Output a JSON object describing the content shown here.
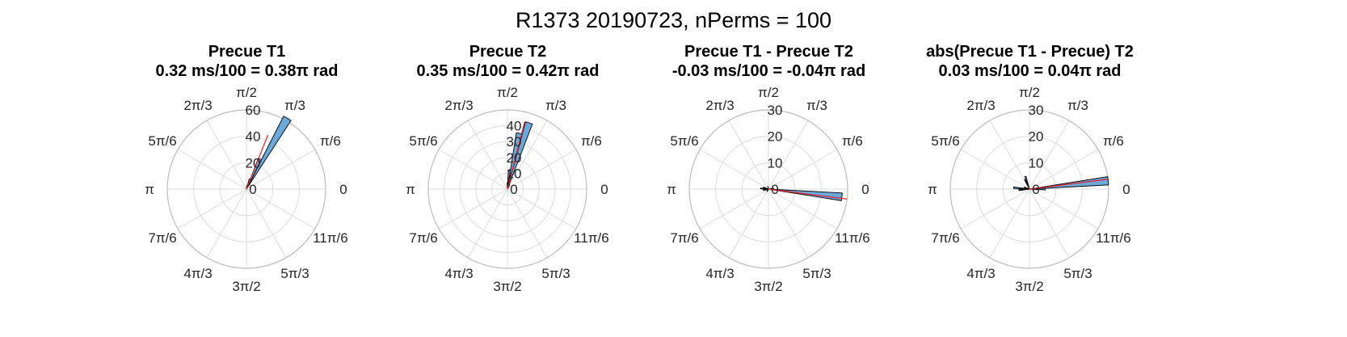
{
  "suptitle": "R1373 20190723, nPerms = 100",
  "theta_tick_labels": [
    "0",
    "π/6",
    "π/3",
    "π/2",
    "2π/3",
    "5π/6",
    "π",
    "7π/6",
    "4π/3",
    "3π/2",
    "5π/3",
    "11π/6"
  ],
  "colors": {
    "bar_fill": "#6aa9d9",
    "bar_edge": "#000000",
    "mean_line": "#e8202a",
    "grid": "#dcdcdc",
    "outer_ring": "#bdbdbd"
  },
  "chart_data": [
    {
      "type": "polar-histogram",
      "title": "Precue T1",
      "subtitle": "0.32 ms/100 = 0.38π rad",
      "rlim": [
        0,
        60
      ],
      "r_ticks": [
        "0",
        "20",
        "40",
        "60"
      ],
      "r_tick_values": [
        0,
        20,
        40,
        60
      ],
      "grid": true,
      "bins": [
        {
          "angle_deg": 60,
          "count": 62
        },
        {
          "angle_deg": 66,
          "count": 25
        },
        {
          "angle_deg": 72,
          "count": 8
        },
        {
          "angle_deg": 78,
          "count": 3
        },
        {
          "angle_deg": 84,
          "count": 2
        }
      ],
      "mean_angle_pi": 0.38,
      "mean_length": 44
    },
    {
      "type": "polar-histogram",
      "title": "Precue T2",
      "subtitle": "0.35 ms/100 = 0.42π rad",
      "rlim": [
        0,
        50
      ],
      "r_ticks": [
        "0",
        "10",
        "20",
        "30",
        "40"
      ],
      "r_tick_values": [
        0,
        10,
        20,
        30,
        40
      ],
      "grid": true,
      "bins": [
        {
          "angle_deg": 72,
          "count": 44
        },
        {
          "angle_deg": 78,
          "count": 36
        },
        {
          "angle_deg": 84,
          "count": 12
        },
        {
          "angle_deg": 90,
          "count": 4
        },
        {
          "angle_deg": 66,
          "count": 3
        }
      ],
      "mean_angle_pi": 0.42,
      "mean_length": 44
    },
    {
      "type": "polar-histogram",
      "title": "Precue T1 - Precue T2",
      "subtitle": "-0.03 ms/100 = -0.04π rad",
      "rlim": [
        0,
        30
      ],
      "r_ticks": [
        "0",
        "10",
        "20",
        "30"
      ],
      "r_tick_values": [
        0,
        10,
        20,
        30
      ],
      "grid": true,
      "bins": [
        {
          "angle_deg": -6,
          "count": 28
        },
        {
          "angle_deg": 6,
          "count": 2
        },
        {
          "angle_deg": 160,
          "count": 2
        },
        {
          "angle_deg": 175,
          "count": 3
        },
        {
          "angle_deg": 190,
          "count": 2
        },
        {
          "angle_deg": 100,
          "count": 1
        },
        {
          "angle_deg": 240,
          "count": 1
        },
        {
          "angle_deg": 200,
          "count": 1
        }
      ],
      "mean_angle_pi": -0.04,
      "mean_length": 30
    },
    {
      "type": "polar-histogram",
      "title": "abs(Precue T1 - Precue) T2",
      "subtitle": "0.03 ms/100 = 0.04π rad",
      "rlim": [
        0,
        30
      ],
      "r_ticks": [
        "0",
        "10",
        "20",
        "30"
      ],
      "r_tick_values": [
        0,
        10,
        20,
        30
      ],
      "grid": true,
      "bins": [
        {
          "angle_deg": 6,
          "count": 30
        },
        {
          "angle_deg": 0,
          "count": 6
        },
        {
          "angle_deg": 108,
          "count": 5
        },
        {
          "angle_deg": 115,
          "count": 4
        },
        {
          "angle_deg": 175,
          "count": 6
        },
        {
          "angle_deg": 185,
          "count": 4
        },
        {
          "angle_deg": 160,
          "count": 2
        }
      ],
      "mean_angle_pi": 0.04,
      "mean_length": 30
    }
  ]
}
